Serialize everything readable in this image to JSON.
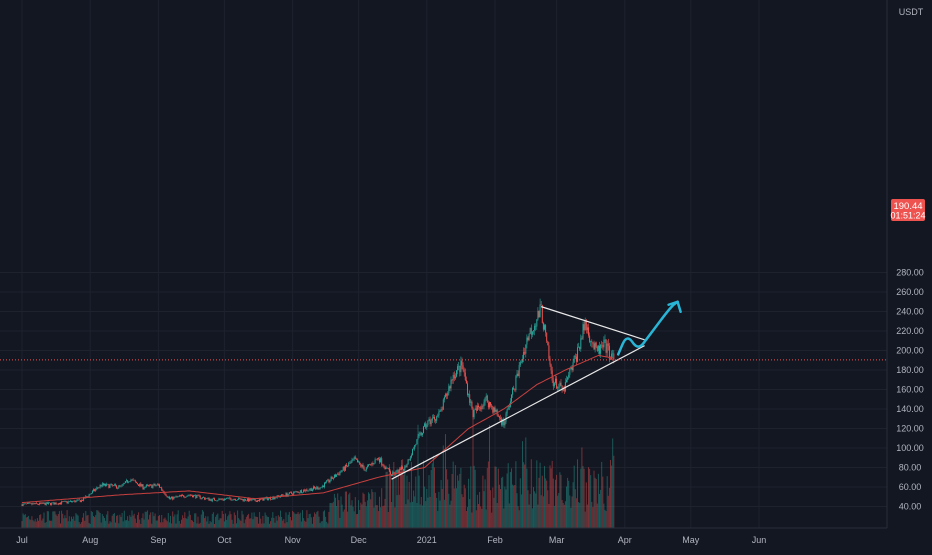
{
  "chart_data": {
    "type": "candlestick",
    "quote_currency": "USDT",
    "price_axis": {
      "ticks": [
        40,
        60,
        80,
        100,
        120,
        140,
        160,
        180,
        200,
        220,
        240,
        260,
        280
      ],
      "tick_labels": [
        "40.00",
        "60.00",
        "80.00",
        "100.00",
        "120.00",
        "140.00",
        "160.00",
        "180.00",
        "200.00",
        "220.00",
        "240.00",
        "260.00",
        "280.00"
      ]
    },
    "time_axis": {
      "labels": [
        "Jul",
        "Aug",
        "Sep",
        "Oct",
        "Nov",
        "Dec",
        "2021",
        "Feb",
        "Mar",
        "Apr",
        "May",
        "Jun"
      ]
    },
    "last_price": {
      "value": 190.44,
      "label": "190.44",
      "countdown": "01:51:24"
    },
    "price_path_anchors": [
      {
        "date": "2020-07-01",
        "price": 42
      },
      {
        "date": "2020-07-15",
        "price": 43
      },
      {
        "date": "2020-07-28",
        "price": 46
      },
      {
        "date": "2020-08-06",
        "price": 62
      },
      {
        "date": "2020-08-15",
        "price": 60
      },
      {
        "date": "2020-08-19",
        "price": 68
      },
      {
        "date": "2020-08-25",
        "price": 60
      },
      {
        "date": "2020-09-01",
        "price": 62
      },
      {
        "date": "2020-09-06",
        "price": 48
      },
      {
        "date": "2020-09-15",
        "price": 52
      },
      {
        "date": "2020-09-25",
        "price": 47
      },
      {
        "date": "2020-10-05",
        "price": 48
      },
      {
        "date": "2020-10-15",
        "price": 46
      },
      {
        "date": "2020-10-25",
        "price": 50
      },
      {
        "date": "2020-11-05",
        "price": 56
      },
      {
        "date": "2020-11-14",
        "price": 60
      },
      {
        "date": "2020-11-24",
        "price": 78
      },
      {
        "date": "2020-11-29",
        "price": 88
      },
      {
        "date": "2020-12-04",
        "price": 78
      },
      {
        "date": "2020-12-10",
        "price": 90
      },
      {
        "date": "2020-12-16",
        "price": 72
      },
      {
        "date": "2020-12-22",
        "price": 80
      },
      {
        "date": "2020-12-27",
        "price": 105
      },
      {
        "date": "2021-01-01",
        "price": 125
      },
      {
        "date": "2021-01-07",
        "price": 135
      },
      {
        "date": "2021-01-13",
        "price": 175
      },
      {
        "date": "2021-01-17",
        "price": 185
      },
      {
        "date": "2021-01-22",
        "price": 135
      },
      {
        "date": "2021-01-28",
        "price": 150
      },
      {
        "date": "2021-02-05",
        "price": 125
      },
      {
        "date": "2021-02-10",
        "price": 165
      },
      {
        "date": "2021-02-16",
        "price": 215
      },
      {
        "date": "2021-02-22",
        "price": 242
      },
      {
        "date": "2021-02-27",
        "price": 170
      },
      {
        "date": "2021-03-04",
        "price": 158
      },
      {
        "date": "2021-03-10",
        "price": 195
      },
      {
        "date": "2021-03-14",
        "price": 228
      },
      {
        "date": "2021-03-19",
        "price": 198
      },
      {
        "date": "2021-03-23",
        "price": 205
      },
      {
        "date": "2021-03-27",
        "price": 190.44
      }
    ],
    "moving_average_anchors": [
      {
        "date": "2020-07-01",
        "price": 44
      },
      {
        "date": "2020-08-15",
        "price": 52
      },
      {
        "date": "2020-09-15",
        "price": 56
      },
      {
        "date": "2020-10-15",
        "price": 48
      },
      {
        "date": "2020-11-15",
        "price": 54
      },
      {
        "date": "2020-12-10",
        "price": 70
      },
      {
        "date": "2020-12-31",
        "price": 80
      },
      {
        "date": "2021-01-20",
        "price": 120
      },
      {
        "date": "2021-02-05",
        "price": 140
      },
      {
        "date": "2021-02-20",
        "price": 165
      },
      {
        "date": "2021-03-05",
        "price": 180
      },
      {
        "date": "2021-03-20",
        "price": 195
      },
      {
        "date": "2021-03-27",
        "price": 192
      }
    ],
    "drawings": {
      "upper_trendline": [
        {
          "date": "2021-02-22",
          "price": 245
        },
        {
          "date": "2021-04-10",
          "price": 211
        }
      ],
      "lower_trendline": [
        {
          "date": "2020-12-16",
          "price": 68
        },
        {
          "date": "2021-04-10",
          "price": 205
        }
      ],
      "projection_path": [
        {
          "date": "2021-03-29",
          "price": 196
        },
        {
          "date": "2021-04-02",
          "price": 217
        },
        {
          "date": "2021-04-07",
          "price": 200
        },
        {
          "date": "2021-04-12",
          "price": 215
        },
        {
          "date": "2021-04-22",
          "price": 245
        },
        {
          "date": "2021-04-25",
          "price": 250
        }
      ]
    },
    "grid": true,
    "colors": {
      "background": "#131722",
      "up": "#26a69a",
      "down": "#ef5350",
      "moving_average": "#c8403e",
      "trendline": "#e8e8e8",
      "projection": "#29b6d6",
      "grid": "#1e222d",
      "axis_text": "#b2b5be",
      "last_price_badge": "#ef5350"
    }
  }
}
